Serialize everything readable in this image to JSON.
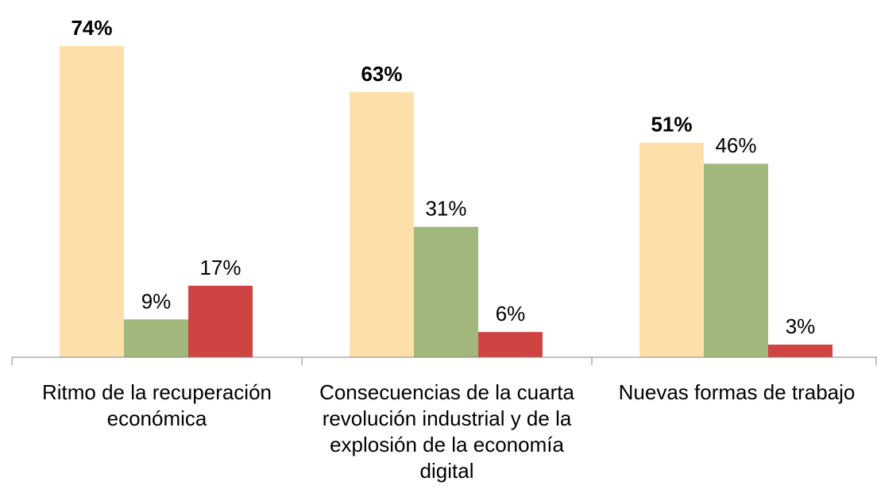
{
  "chart_data": {
    "type": "bar",
    "categories": [
      "Ritmo de la recuperación económica",
      "Consecuencias de la cuarta revolución industrial y de la explosión de la economía digital",
      "Nuevas formas de trabajo"
    ],
    "series": [
      {
        "color": "#fde0a9",
        "values": [
          74,
          63,
          51
        ],
        "value_labels": [
          "74%",
          "63%",
          "51%"
        ]
      },
      {
        "color": "#a2b77c",
        "values": [
          9,
          31,
          46
        ],
        "value_labels": [
          "9%",
          "31%",
          "46%"
        ]
      },
      {
        "color": "#cf4342",
        "values": [
          17,
          6,
          3
        ],
        "value_labels": [
          "17%",
          "6%",
          "3%"
        ]
      }
    ],
    "ylim": [
      0,
      80
    ]
  }
}
